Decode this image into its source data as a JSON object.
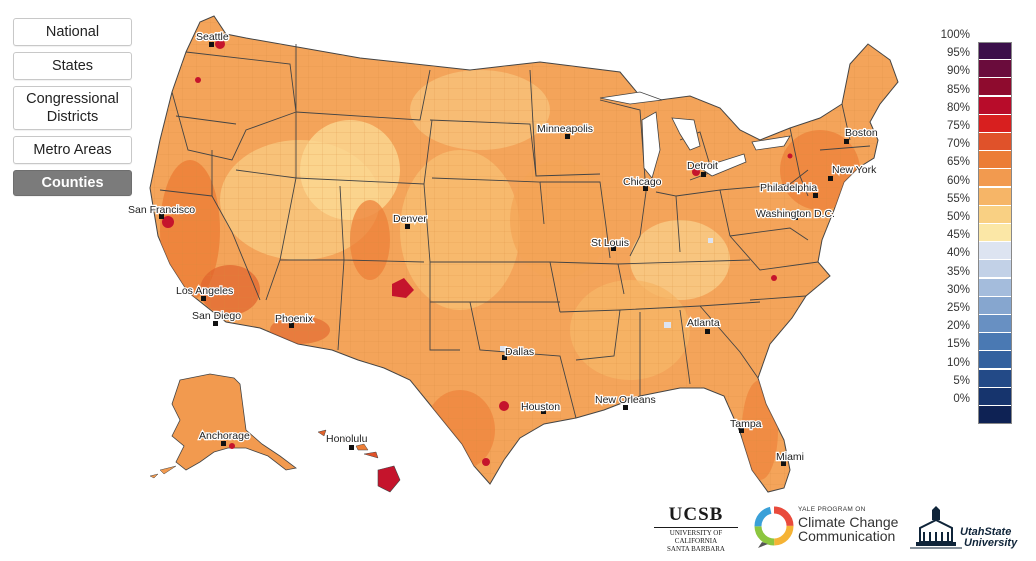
{
  "geography_buttons": [
    {
      "label": "National",
      "active": false
    },
    {
      "label": "States",
      "active": false
    },
    {
      "label": "Congressional Districts",
      "active": false
    },
    {
      "label": "Metro Areas",
      "active": false
    },
    {
      "label": "Counties",
      "active": true
    }
  ],
  "cities": [
    {
      "name": "Seattle"
    },
    {
      "name": "San Francisco"
    },
    {
      "name": "Los Angeles"
    },
    {
      "name": "San Diego"
    },
    {
      "name": "Phoenix"
    },
    {
      "name": "Denver"
    },
    {
      "name": "Minneapolis"
    },
    {
      "name": "Chicago"
    },
    {
      "name": "Detroit"
    },
    {
      "name": "St Louis"
    },
    {
      "name": "Dallas"
    },
    {
      "name": "Houston"
    },
    {
      "name": "New Orleans"
    },
    {
      "name": "Atlanta"
    },
    {
      "name": "Tampa"
    },
    {
      "name": "Miami"
    },
    {
      "name": "Washington D.C."
    },
    {
      "name": "Philadelphia"
    },
    {
      "name": "New York"
    },
    {
      "name": "Boston"
    },
    {
      "name": "Anchorage"
    },
    {
      "name": "Honolulu"
    }
  ],
  "legend": {
    "labels": [
      "100%",
      "95%",
      "90%",
      "85%",
      "80%",
      "75%",
      "70%",
      "65%",
      "60%",
      "55%",
      "50%",
      "45%",
      "40%",
      "35%",
      "30%",
      "25%",
      "20%",
      "15%",
      "10%",
      "5%",
      "0%"
    ],
    "colors": [
      "#3b0f4a",
      "#6a0c3c",
      "#8e0b2e",
      "#b80c2a",
      "#d81f1f",
      "#e0522a",
      "#ec7d36",
      "#f29a4f",
      "#f6b567",
      "#f9d083",
      "#fbe7a6",
      "#dde4f1",
      "#c2d1e7",
      "#a4bcdc",
      "#86a6cf",
      "#6890c2",
      "#4a79b3",
      "#33619f",
      "#234a87",
      "#16346d",
      "#0e2254"
    ]
  },
  "logos": {
    "ucsb": {
      "word": "UCSB",
      "sub1": "UNIVERSITY OF CALIFORNIA",
      "sub2": "SANTA BARBARA"
    },
    "yale": {
      "top": "YALE PROGRAM ON",
      "line1": "Climate Change",
      "line2": "Communication"
    },
    "usu": {
      "line1": "UtahState",
      "line2": "University"
    }
  },
  "colors": {
    "state_border": "#444444",
    "county_border": "#d98a3e"
  }
}
